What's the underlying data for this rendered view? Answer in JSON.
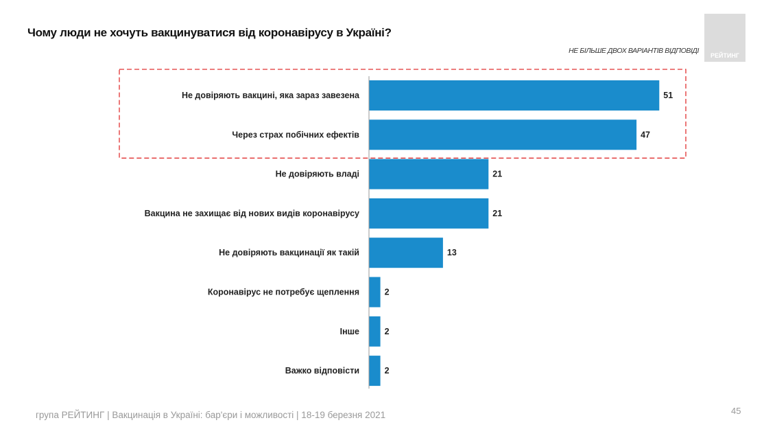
{
  "header": {
    "title": "Чому люди не хочуть вакцинуватися від коронавірусу в Україні?",
    "note": "НЕ БІЛЬШЕ ДВОХ ВАРІАНТІВ ВІДПОВІДІ",
    "logo_text": "РЕЙТИНГ"
  },
  "footer": {
    "text": "група РЕЙТИНГ | Вакцинація в Україні: бар'єри і можливості | 18-19 березня 2021",
    "page": "45"
  },
  "chart_data": {
    "type": "bar",
    "orientation": "horizontal",
    "categories": [
      "Не довіряють вакцині, яка зараз завезена",
      "Через страх побічних ефектів",
      "Не довіряють владі",
      "Вакцина не захищає від нових видів коронавірусу",
      "Не довіряють вакцинації як такій",
      "Коронавірус не потребує щеплення",
      "Інше",
      "Важко відповісти"
    ],
    "values": [
      51,
      47,
      21,
      21,
      13,
      2,
      2,
      2
    ],
    "highlighted": [
      0,
      1
    ],
    "bar_color": "#1a8ccc",
    "highlight_color": "#e03030",
    "xlim": [
      0,
      55
    ],
    "grid": false
  }
}
